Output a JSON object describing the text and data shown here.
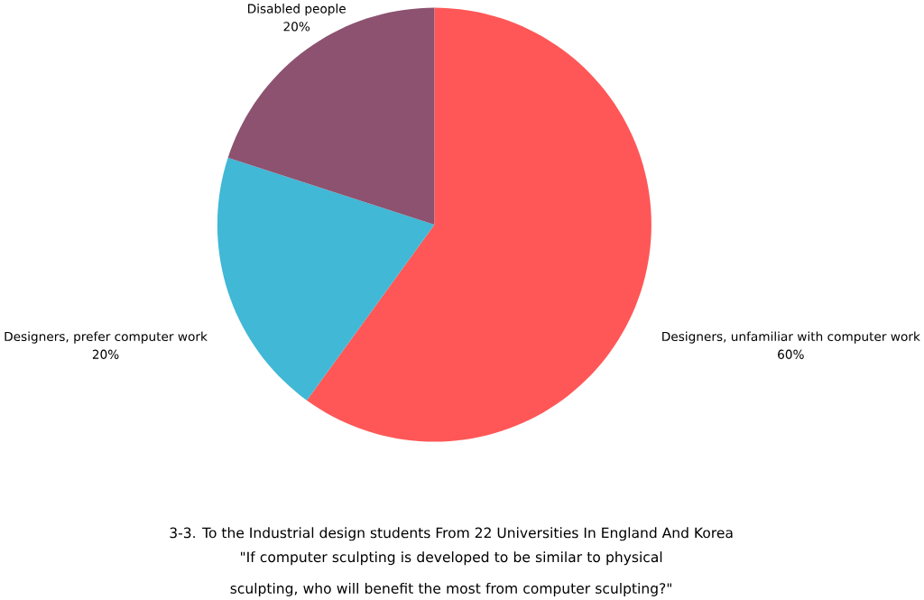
{
  "chart_data": {
    "type": "pie",
    "title": "3-3. To the Industrial design students From 22 Universities In England And Korea",
    "subtitle": "\"If computer sculpting is developed to be similar to physical sculpting, who will benefit the most from computer sculpting?\"",
    "categories": [
      "Designers, unfamiliar with computer work",
      "Designers, prefer computer work",
      "Disabled people"
    ],
    "values": [
      60,
      20,
      20
    ],
    "value_labels": [
      "60%",
      "20%",
      "20%"
    ],
    "colors": [
      "#ff5757",
      "#41b8d5",
      "#8c5270"
    ]
  }
}
